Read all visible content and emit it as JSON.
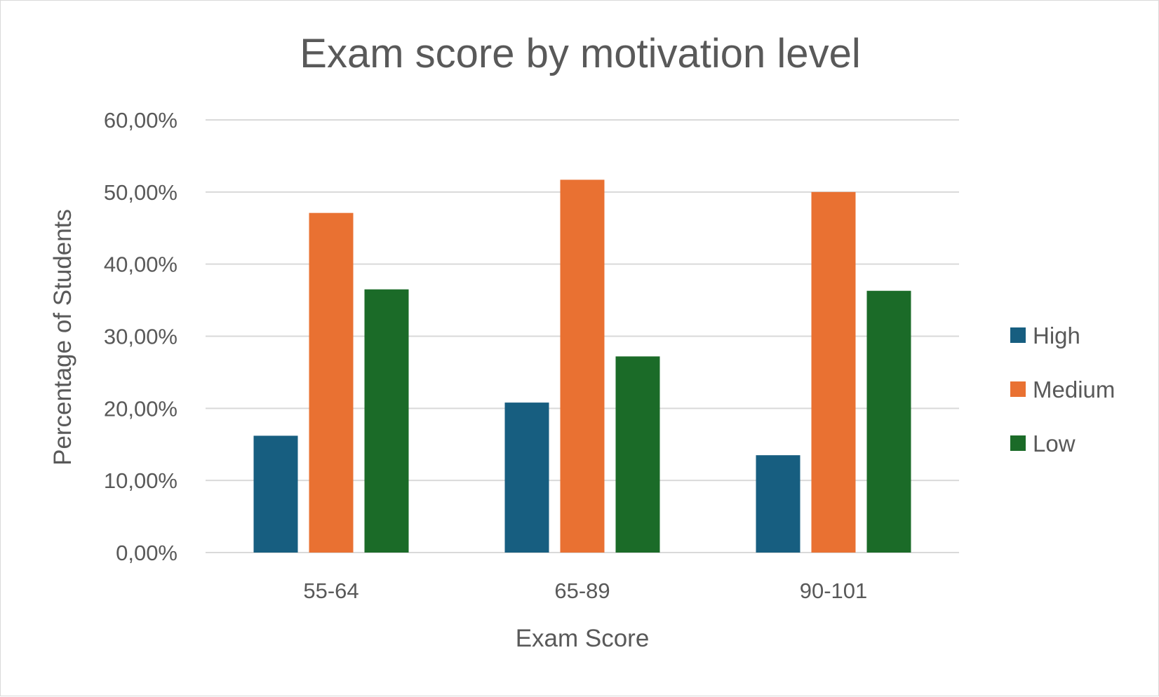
{
  "chart_data": {
    "type": "bar",
    "title": "Exam score by motivation level",
    "xlabel": "Exam Score",
    "ylabel": "Percentage of Students",
    "categories": [
      "55-64",
      "65-89",
      "90-101"
    ],
    "series": [
      {
        "name": "High",
        "color": "#175e80",
        "values": [
          16.2,
          20.8,
          13.5
        ]
      },
      {
        "name": "Medium",
        "color": "#e97132",
        "values": [
          47.1,
          51.7,
          50.0
        ]
      },
      {
        "name": "Low",
        "color": "#1b6b28",
        "values": [
          36.5,
          27.2,
          36.3
        ]
      }
    ],
    "ylim": [
      0,
      60
    ],
    "yticks": [
      0,
      10,
      20,
      30,
      40,
      50,
      60
    ],
    "ytick_labels": [
      "0,00%",
      "10,00%",
      "20,00%",
      "30,00%",
      "40,00%",
      "50,00%",
      "60,00%"
    ],
    "grid": true,
    "legend_position": "right",
    "gridline_color": "#d9d9d9"
  }
}
